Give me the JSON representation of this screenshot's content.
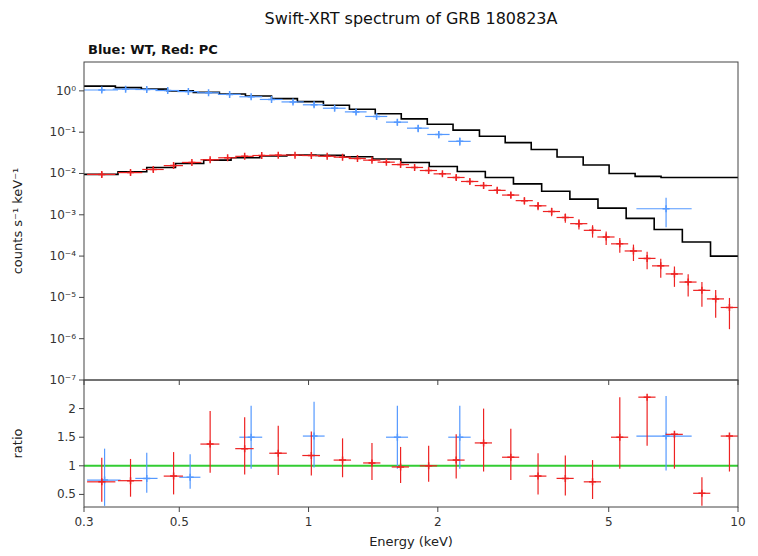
{
  "chart_data": [
    {
      "type": "errorbar",
      "title": "Swift-XRT spectrum of GRB 180823A",
      "subtitle": "Blue: WT, Red: PC",
      "ylabel": "counts s⁻¹ keV⁻¹",
      "log": true,
      "grid": false,
      "tick_labels": "y",
      "xlim": [
        0.3,
        10.0
      ],
      "ylim": [
        1e-07,
        5.0
      ],
      "xticks": [
        0.3,
        0.5,
        1,
        2,
        5,
        10
      ],
      "yticks": [
        {
          "value": 1e-07,
          "label": "10⁻⁷"
        },
        {
          "value": 1e-06,
          "label": "10⁻⁶"
        },
        {
          "value": 1e-05,
          "label": "10⁻⁵"
        },
        {
          "value": 0.0001,
          "label": "10⁻⁴"
        },
        {
          "value": 0.001,
          "label": "10⁻³"
        },
        {
          "value": 0.01,
          "label": "10⁻²"
        },
        {
          "value": 0.1,
          "label": "10⁻¹"
        },
        {
          "value": 1,
          "label": "10⁰"
        }
      ],
      "series": [
        {
          "type": "line",
          "color": "black",
          "x": [
            0.3,
            0.355,
            0.355,
            0.408,
            0.408,
            0.469,
            0.469,
            0.539,
            0.539,
            0.62,
            0.62,
            0.713,
            0.713,
            0.82,
            0.82,
            0.942,
            0.942,
            1.083,
            1.083,
            1.245,
            1.245,
            1.43,
            1.43,
            1.644,
            1.644,
            1.89,
            1.89,
            2.17,
            2.17,
            2.5,
            2.5,
            2.87,
            2.87,
            3.3,
            3.3,
            3.79,
            3.79,
            4.36,
            4.36,
            5.01,
            5.01,
            5.76,
            5.76,
            6.62,
            6.62,
            7.0,
            7.0,
            10.0
          ],
          "values": [
            1.3,
            1.3,
            1.2,
            1.2,
            1.1,
            1.1,
            1.0,
            1.0,
            0.92,
            0.92,
            0.84,
            0.84,
            0.75,
            0.75,
            0.65,
            0.65,
            0.55,
            0.55,
            0.45,
            0.45,
            0.36,
            0.36,
            0.28,
            0.28,
            0.21,
            0.21,
            0.155,
            0.155,
            0.112,
            0.112,
            0.08,
            0.08,
            0.056,
            0.056,
            0.038,
            0.038,
            0.025,
            0.025,
            0.016,
            0.016,
            0.01,
            0.01,
            0.0085,
            0.0085,
            0.008,
            0.008,
            0.008,
            0.008
          ]
        },
        {
          "type": "line",
          "color": "black",
          "x": [
            0.3,
            0.36,
            0.36,
            0.42,
            0.42,
            0.49,
            0.49,
            0.57,
            0.57,
            0.66,
            0.66,
            0.77,
            0.77,
            0.89,
            0.89,
            1.04,
            1.04,
            1.21,
            1.21,
            1.41,
            1.41,
            1.64,
            1.64,
            1.91,
            1.91,
            2.22,
            2.22,
            2.58,
            2.58,
            3.0,
            3.0,
            3.49,
            3.49,
            4.06,
            4.06,
            4.72,
            4.72,
            5.49,
            5.49,
            6.38,
            6.38,
            7.42,
            7.42,
            8.63,
            8.63,
            10.0
          ],
          "values": [
            0.0095,
            0.0095,
            0.011,
            0.011,
            0.014,
            0.014,
            0.0175,
            0.0175,
            0.021,
            0.021,
            0.024,
            0.024,
            0.0265,
            0.0265,
            0.0278,
            0.0278,
            0.0275,
            0.0275,
            0.0255,
            0.0255,
            0.0225,
            0.0225,
            0.0185,
            0.0185,
            0.0148,
            0.0148,
            0.0112,
            0.0112,
            0.008,
            0.008,
            0.0056,
            0.0056,
            0.0037,
            0.0037,
            0.0024,
            0.0024,
            0.00145,
            0.00145,
            0.00082,
            0.00082,
            0.00044,
            0.00044,
            0.00022,
            0.00022,
            0.0001,
            0.0001
          ]
        },
        {
          "type": "errorbar",
          "color": "#5599ff",
          "marker": "plus",
          "x": [
            0.33,
            0.375,
            0.42,
            0.47,
            0.525,
            0.585,
            0.655,
            0.735,
            0.82,
            0.92,
            1.03,
            1.15,
            1.29,
            1.44,
            1.61,
            1.8,
            2.01,
            2.25,
            6.8
          ],
          "xerr": [
            0.03,
            0.025,
            0.025,
            0.03,
            0.03,
            0.035,
            0.04,
            0.045,
            0.05,
            0.055,
            0.06,
            0.07,
            0.075,
            0.085,
            0.095,
            0.105,
            0.12,
            0.135,
            1.0
          ],
          "values": [
            1.05,
            1.1,
            1.08,
            1.02,
            0.96,
            0.9,
            0.82,
            0.72,
            0.62,
            0.54,
            0.46,
            0.38,
            0.31,
            0.24,
            0.175,
            0.125,
            0.088,
            0.06,
            0.0014
          ],
          "yerr_low": [
            0.12,
            0.12,
            0.11,
            0.1,
            0.09,
            0.09,
            0.08,
            0.07,
            0.065,
            0.06,
            0.055,
            0.05,
            0.045,
            0.04,
            0.03,
            0.025,
            0.018,
            0.013,
            0.0009
          ],
          "yerr_high": [
            0.15,
            0.14,
            0.12,
            0.11,
            0.1,
            0.09,
            0.08,
            0.07,
            0.065,
            0.06,
            0.055,
            0.05,
            0.045,
            0.04,
            0.03,
            0.025,
            0.018,
            0.013,
            0.0012
          ]
        },
        {
          "type": "errorbar",
          "color": "#ee2222",
          "marker": "plus",
          "x": [
            0.33,
            0.385,
            0.435,
            0.485,
            0.535,
            0.59,
            0.648,
            0.71,
            0.778,
            0.85,
            0.93,
            1.015,
            1.105,
            1.2,
            1.3,
            1.405,
            1.518,
            1.638,
            1.766,
            1.904,
            2.05,
            2.207,
            2.375,
            2.556,
            2.75,
            2.958,
            3.182,
            3.423,
            3.682,
            3.962,
            4.262,
            4.585,
            4.932,
            5.306,
            5.709,
            6.143,
            6.609,
            7.112,
            7.655,
            8.241,
            8.872,
            9.552
          ],
          "xerr": [
            0.025,
            0.025,
            0.025,
            0.025,
            0.028,
            0.03,
            0.032,
            0.035,
            0.038,
            0.04,
            0.044,
            0.048,
            0.052,
            0.056,
            0.06,
            0.065,
            0.07,
            0.076,
            0.082,
            0.088,
            0.095,
            0.102,
            0.11,
            0.118,
            0.127,
            0.136,
            0.146,
            0.157,
            0.169,
            0.182,
            0.196,
            0.211,
            0.227,
            0.244,
            0.263,
            0.283,
            0.304,
            0.327,
            0.352,
            0.378,
            0.407,
            0.438
          ],
          "values": [
            0.0095,
            0.0105,
            0.0125,
            0.0155,
            0.0185,
            0.0215,
            0.024,
            0.026,
            0.0272,
            0.0278,
            0.0278,
            0.0272,
            0.0262,
            0.0248,
            0.023,
            0.021,
            0.0188,
            0.0164,
            0.014,
            0.0118,
            0.0098,
            0.008,
            0.0064,
            0.0051,
            0.0039,
            0.003,
            0.0022,
            0.00165,
            0.0012,
            0.00086,
            0.00061,
            0.00042,
            0.00029,
            0.000198,
            0.000133,
            8.8e-05,
            5.8e-05,
            3.7e-05,
            2.35e-05,
            1.48e-05,
            9.2e-06,
            5.7e-06
          ],
          "yerr_low": [
            0.0015,
            0.0015,
            0.0016,
            0.0017,
            0.0018,
            0.0018,
            0.0019,
            0.0019,
            0.0019,
            0.0019,
            0.0019,
            0.0019,
            0.0019,
            0.0018,
            0.0018,
            0.0017,
            0.0016,
            0.0015,
            0.0014,
            0.0013,
            0.0011,
            0.001,
            0.00085,
            0.00073,
            0.00062,
            0.00052,
            0.00043,
            0.00036,
            0.00028,
            0.00022,
            0.00017,
            0.00014,
            0.000105,
            7.8e-05,
            5.7e-05,
            4e-05,
            2.8e-05,
            1.9e-05,
            1.3e-05,
            8.9e-06,
            6e-06,
            4e-06
          ],
          "yerr_high": [
            0.0015,
            0.0015,
            0.0016,
            0.0017,
            0.0018,
            0.0018,
            0.0019,
            0.0019,
            0.0019,
            0.0019,
            0.0019,
            0.0019,
            0.0019,
            0.0018,
            0.0018,
            0.0017,
            0.0016,
            0.0015,
            0.0014,
            0.0013,
            0.0011,
            0.001,
            0.00085,
            0.00073,
            0.00062,
            0.00052,
            0.00043,
            0.00036,
            0.00028,
            0.00022,
            0.00017,
            0.00014,
            0.000105,
            7.8e-05,
            5.7e-05,
            4e-05,
            2.8e-05,
            1.9e-05,
            1.3e-05,
            8.9e-06,
            6e-06,
            4e-06
          ]
        }
      ]
    },
    {
      "type": "errorbar",
      "xlabel": "Energy (keV)",
      "ylabel": "ratio",
      "log": "x",
      "grid": false,
      "xlim": [
        0.3,
        10.0
      ],
      "ylim": [
        0.28,
        2.5
      ],
      "xticks": [
        0.3,
        0.5,
        1,
        2,
        5,
        10
      ],
      "yticks": [
        0.5,
        1,
        1.5,
        2
      ],
      "series": [
        {
          "type": "hline",
          "color": "#33cc33",
          "values": [
            1.0
          ]
        },
        {
          "type": "errorbar",
          "color": "#5599ff",
          "marker": "plus",
          "x": [
            0.335,
            0.42,
            0.53,
            0.735,
            1.03,
            1.61,
            2.25,
            6.8
          ],
          "xerr": [
            0.03,
            0.025,
            0.03,
            0.045,
            0.06,
            0.095,
            0.135,
            1.0
          ],
          "values": [
            0.75,
            0.78,
            0.8,
            1.5,
            1.52,
            1.5,
            1.5,
            1.52
          ],
          "yerr_low": [
            0.45,
            0.25,
            0.2,
            0.55,
            0.55,
            0.55,
            0.55,
            0.6
          ],
          "yerr_high": [
            0.55,
            0.45,
            0.4,
            0.55,
            0.6,
            0.55,
            0.55,
            0.7
          ]
        },
        {
          "type": "errorbar",
          "color": "#ee2222",
          "marker": "plus",
          "x": [
            0.33,
            0.385,
            0.485,
            0.59,
            0.71,
            0.85,
            1.015,
            1.2,
            1.405,
            1.638,
            1.904,
            2.207,
            2.556,
            2.958,
            3.423,
            3.962,
            4.585,
            5.306,
            6.143,
            7.112,
            8.241,
            9.552
          ],
          "xerr": [
            0.025,
            0.025,
            0.025,
            0.03,
            0.035,
            0.04,
            0.048,
            0.056,
            0.065,
            0.076,
            0.088,
            0.102,
            0.118,
            0.136,
            0.157,
            0.182,
            0.211,
            0.244,
            0.283,
            0.327,
            0.378,
            0.438
          ],
          "values": [
            0.72,
            0.74,
            0.82,
            1.38,
            1.3,
            1.22,
            1.18,
            1.1,
            1.05,
            0.98,
            1.0,
            1.1,
            1.4,
            1.15,
            0.82,
            0.78,
            0.72,
            1.5,
            2.2,
            1.55,
            0.52,
            1.52
          ],
          "yerr_low": [
            0.35,
            0.28,
            0.32,
            0.5,
            0.45,
            0.38,
            0.35,
            0.3,
            0.3,
            0.28,
            0.28,
            0.32,
            0.5,
            0.4,
            0.32,
            0.3,
            0.3,
            0.55,
            0.85,
            0.6,
            0.22,
            0.62
          ],
          "yerr_high": [
            0.42,
            0.38,
            0.42,
            0.58,
            0.55,
            0.48,
            0.42,
            0.38,
            0.35,
            0.35,
            0.35,
            0.45,
            0.6,
            0.5,
            0.4,
            0.4,
            0.38,
            0.7,
            0.0,
            0.0,
            0.28,
            0.0
          ]
        }
      ]
    }
  ]
}
